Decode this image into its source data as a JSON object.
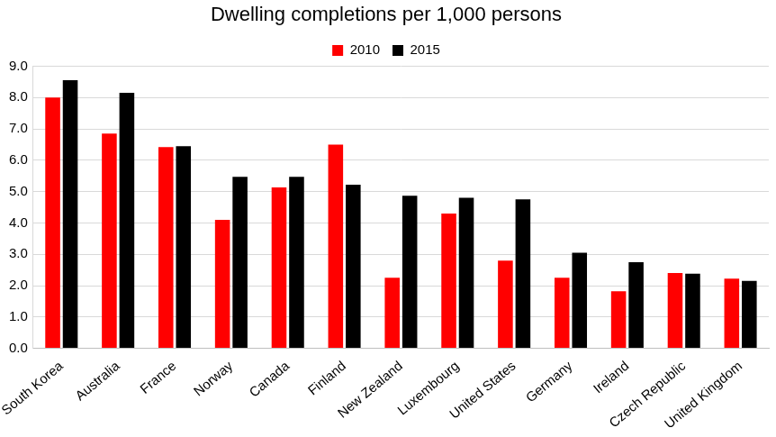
{
  "chart_data": {
    "type": "bar",
    "title": "Dwelling completions per 1,000 persons",
    "categories": [
      "South Korea",
      "Australia",
      "France",
      "Norway",
      "Canada",
      "Finland",
      "New Zealand",
      "Luxembourg",
      "United States",
      "Germany",
      "Ireland",
      "Czech Republic",
      "United Kingdom"
    ],
    "series": [
      {
        "name": "2010",
        "color": "#ff0000",
        "values": [
          8.0,
          6.85,
          6.42,
          4.1,
          5.13,
          6.5,
          2.25,
          4.3,
          2.8,
          2.25,
          1.82,
          2.4,
          2.22
        ]
      },
      {
        "name": "2015",
        "color": "#000000",
        "values": [
          8.55,
          8.15,
          6.45,
          5.47,
          5.47,
          5.22,
          4.87,
          4.8,
          4.75,
          3.05,
          2.75,
          2.38,
          2.15
        ]
      }
    ],
    "ylim": [
      0,
      9
    ],
    "yticks": [
      {
        "value": 0,
        "label": "0.0"
      },
      {
        "value": 1,
        "label": "1.0"
      },
      {
        "value": 2,
        "label": "2.0"
      },
      {
        "value": 3,
        "label": "3.0"
      },
      {
        "value": 4,
        "label": "4.0"
      },
      {
        "value": 5,
        "label": "5.0"
      },
      {
        "value": 6,
        "label": "6.0"
      },
      {
        "value": 7,
        "label": "7.0"
      },
      {
        "value": 8,
        "label": "8.0"
      },
      {
        "value": 9,
        "label": "9.0"
      }
    ],
    "grid": true,
    "legend": "top"
  }
}
